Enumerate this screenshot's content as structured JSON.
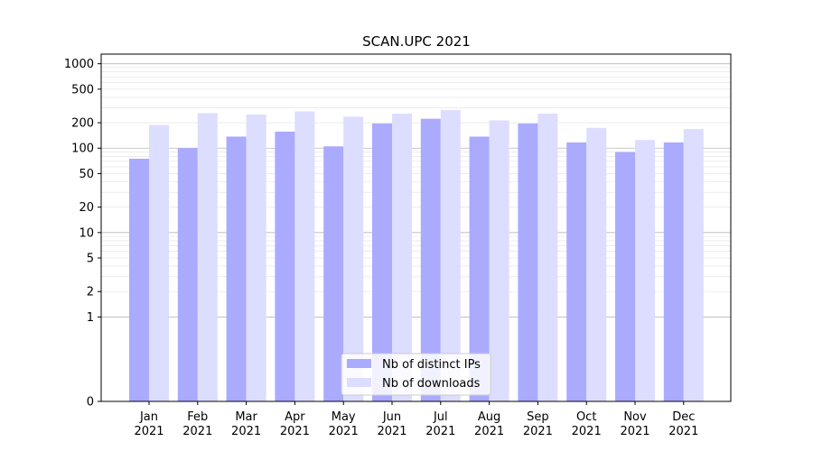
{
  "chart_data": {
    "type": "bar",
    "title": "SCAN.UPC 2021",
    "xlabel": "",
    "ylabel": "",
    "y_scale": "symlog",
    "ylim": [
      0,
      1300
    ],
    "y_ticks": [
      0,
      1,
      2,
      5,
      10,
      20,
      50,
      100,
      200,
      500,
      1000
    ],
    "categories": [
      [
        "Jan",
        "2021"
      ],
      [
        "Feb",
        "2021"
      ],
      [
        "Mar",
        "2021"
      ],
      [
        "Apr",
        "2021"
      ],
      [
        "May",
        "2021"
      ],
      [
        "Jun",
        "2021"
      ],
      [
        "Jul",
        "2021"
      ],
      [
        "Aug",
        "2021"
      ],
      [
        "Sep",
        "2021"
      ],
      [
        "Oct",
        "2021"
      ],
      [
        "Nov",
        "2021"
      ],
      [
        "Dec",
        "2021"
      ]
    ],
    "series": [
      {
        "name": "Nb of distinct IPs",
        "color": "#aaaaff",
        "values": [
          75,
          100,
          137,
          157,
          105,
          196,
          223,
          137,
          196,
          117,
          90,
          117
        ]
      },
      {
        "name": "Nb of downloads",
        "color": "#ddddff",
        "values": [
          188,
          260,
          250,
          272,
          236,
          256,
          282,
          213,
          256,
          174,
          125,
          168
        ]
      }
    ],
    "legend": "lower-center",
    "grid": true
  }
}
